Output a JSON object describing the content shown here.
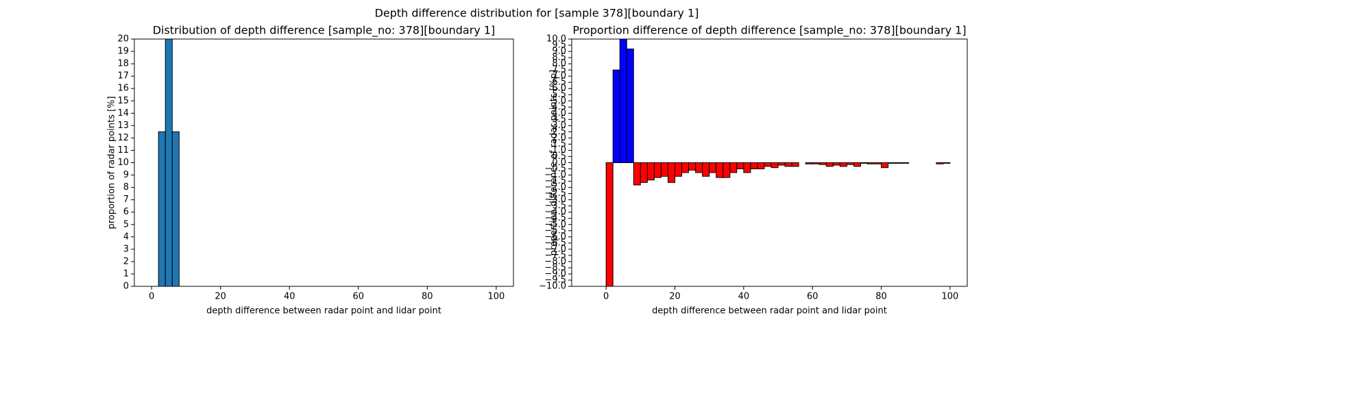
{
  "title": "Depth difference distribution for [sample 378][boundary 1]",
  "chart_data": [
    {
      "type": "histogram",
      "title": "Distribution of depth difference [sample_no: 378][boundary 1]",
      "x_label": "depth difference between radar point and lidar point",
      "y_label": "proportion of radar points [%]",
      "bins": [
        0,
        2,
        4,
        6,
        8,
        10,
        12,
        14,
        16,
        18,
        20,
        22,
        24,
        26,
        28,
        30,
        32,
        34,
        36,
        38,
        40,
        42,
        44,
        46,
        48,
        50,
        52,
        54,
        56,
        58,
        60,
        62,
        64,
        66,
        68,
        70,
        72,
        74,
        76,
        78,
        80,
        82,
        84,
        86,
        88,
        90,
        92,
        94,
        96,
        98,
        100
      ],
      "values": [
        0,
        12.5,
        20,
        12.5,
        0,
        0,
        0,
        0,
        0,
        0,
        0,
        0,
        0,
        0,
        0,
        0,
        0,
        0,
        0,
        0,
        0,
        0,
        0,
        0,
        0,
        0,
        0,
        0,
        0,
        0,
        0,
        0,
        0,
        0,
        0,
        0,
        0,
        0,
        0,
        0,
        0,
        0,
        0,
        0,
        0,
        0,
        0,
        0,
        0,
        0
      ],
      "color": "#1f77b4",
      "xlim": [
        -5,
        105
      ],
      "xticks": [
        0,
        20,
        40,
        60,
        80,
        100
      ],
      "ylim": [
        0,
        20
      ],
      "yticks": [
        0,
        1,
        2,
        3,
        4,
        5,
        6,
        7,
        8,
        9,
        10,
        11,
        12,
        13,
        14,
        15,
        16,
        17,
        18,
        19,
        20
      ]
    },
    {
      "type": "histogram",
      "title": "Proportion difference of depth difference [sample_no: 378][boundary 1]",
      "x_label": "depth difference between radar point and lidar point",
      "y_label": "proportion difference of radar points [%p]",
      "bins": [
        0,
        2,
        4,
        6,
        8,
        10,
        12,
        14,
        16,
        18,
        20,
        22,
        24,
        26,
        28,
        30,
        32,
        34,
        36,
        38,
        40,
        42,
        44,
        46,
        48,
        50,
        52,
        54,
        56,
        58,
        60,
        62,
        64,
        66,
        68,
        70,
        72,
        74,
        76,
        78,
        80,
        82,
        84,
        86,
        88,
        90,
        92,
        94,
        96,
        98,
        100
      ],
      "values": [
        -10,
        7.5,
        10,
        9.2,
        -1.8,
        -1.6,
        -1.4,
        -1.2,
        -1.1,
        -1.6,
        -1.1,
        -0.8,
        -0.6,
        -0.8,
        -1.1,
        -0.8,
        -1.2,
        -1.2,
        -0.8,
        -0.5,
        -0.8,
        -0.5,
        -0.5,
        -0.3,
        -0.4,
        -0.2,
        -0.3,
        -0.3,
        0,
        -0.1,
        -0.1,
        -0.15,
        -0.3,
        -0.2,
        -0.3,
        -0.15,
        -0.3,
        -0.05,
        -0.1,
        -0.1,
        -0.4,
        -0.05,
        -0.05,
        -0.05,
        0,
        0,
        0,
        0,
        -0.1,
        -0.05
      ],
      "color_positive": "#0000ff",
      "color_negative": "#ff0000",
      "xlim": [
        -10,
        105
      ],
      "xticks": [
        0,
        20,
        40,
        60,
        80,
        100
      ],
      "ylim": [
        -10,
        10
      ],
      "yticks": [
        {
          "value": -10,
          "label": "−10.0"
        },
        {
          "value": -9.5,
          "label": "−9.5"
        },
        {
          "value": -9,
          "label": "−9.0"
        },
        {
          "value": -8.5,
          "label": "−8.5"
        },
        {
          "value": -8,
          "label": "−8.0"
        },
        {
          "value": -7.5,
          "label": "−7.5"
        },
        {
          "value": -7,
          "label": "−7.0"
        },
        {
          "value": -6.5,
          "label": "−6.5"
        },
        {
          "value": -6,
          "label": "−6.0"
        },
        {
          "value": -5.5,
          "label": "−5.5"
        },
        {
          "value": -5,
          "label": "−5.0"
        },
        {
          "value": -4.5,
          "label": "−4.5"
        },
        {
          "value": -4,
          "label": "−4.0"
        },
        {
          "value": -3.5,
          "label": "−3.5"
        },
        {
          "value": -3,
          "label": "−3.0"
        },
        {
          "value": -2.5,
          "label": "−2.5"
        },
        {
          "value": -2,
          "label": "−2.0"
        },
        {
          "value": -1.5,
          "label": "−1.5"
        },
        {
          "value": -1,
          "label": "−1.0"
        },
        {
          "value": -0.5,
          "label": "−0.5"
        },
        {
          "value": 0,
          "label": "0.0"
        },
        {
          "value": 0.5,
          "label": "0.5"
        },
        {
          "value": 1,
          "label": "1.0"
        },
        {
          "value": 1.5,
          "label": "1.5"
        },
        {
          "value": 2,
          "label": "2.0"
        },
        {
          "value": 2.5,
          "label": "2.5"
        },
        {
          "value": 3,
          "label": "3.0"
        },
        {
          "value": 3.5,
          "label": "3.5"
        },
        {
          "value": 4,
          "label": "4.0"
        },
        {
          "value": 4.5,
          "label": "4.5"
        },
        {
          "value": 5,
          "label": "5.0"
        },
        {
          "value": 5.5,
          "label": "5.5"
        },
        {
          "value": 6,
          "label": "6.0"
        },
        {
          "value": 6.5,
          "label": "6.5"
        },
        {
          "value": 7,
          "label": "7.0"
        },
        {
          "value": 7.5,
          "label": "7.5"
        },
        {
          "value": 8,
          "label": "8.0"
        },
        {
          "value": 8.5,
          "label": "8.5"
        },
        {
          "value": 9,
          "label": "9.0"
        },
        {
          "value": 9.5,
          "label": "9.5"
        },
        {
          "value": 10,
          "label": "10.0"
        }
      ]
    }
  ]
}
